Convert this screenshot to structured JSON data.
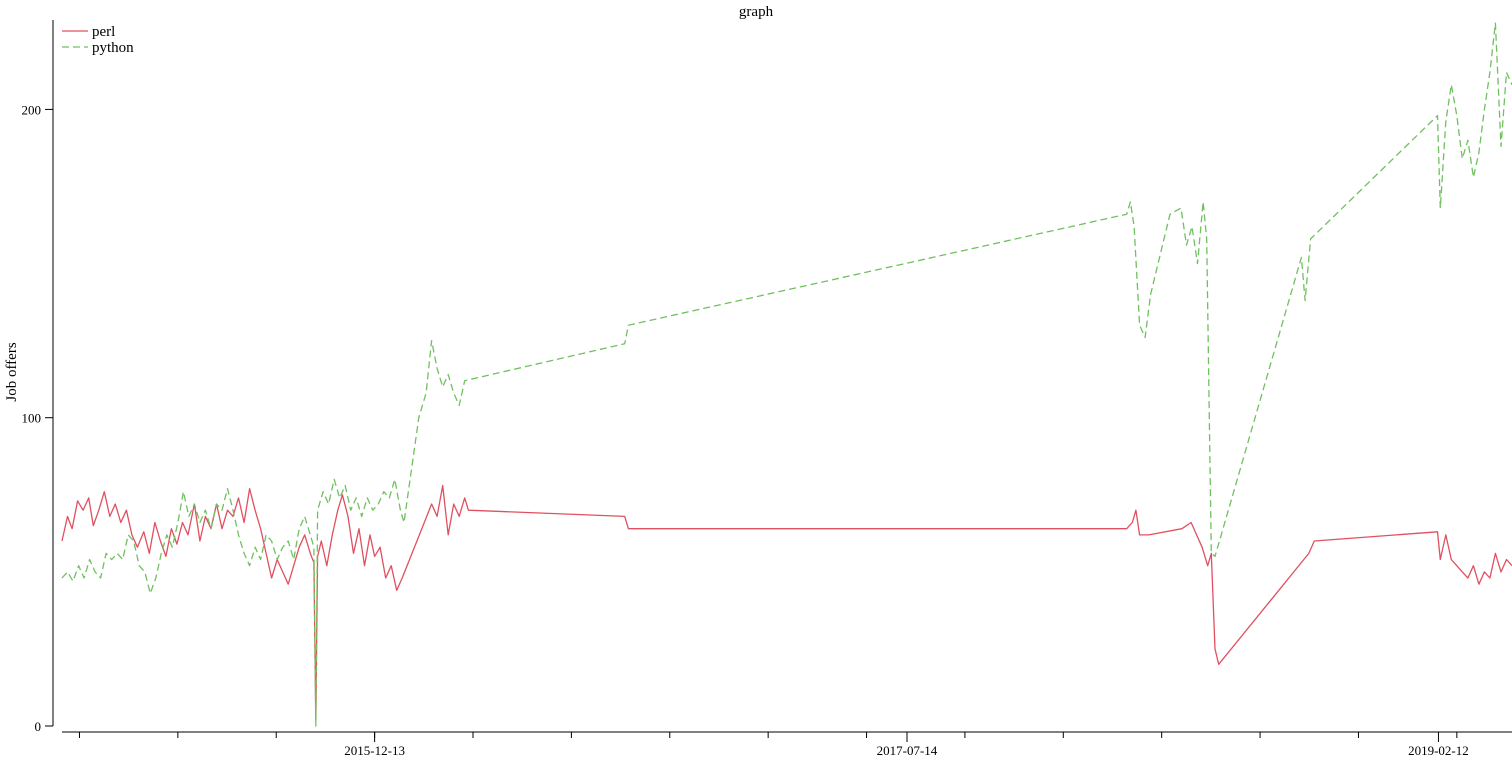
{
  "chart_data": {
    "type": "line",
    "title": "graph",
    "xlabel": "",
    "ylabel": "Job offers",
    "x_axis_type": "date",
    "xlim": [
      "2015-01-07",
      "2019-05-03"
    ],
    "ylim": [
      0,
      229
    ],
    "x_ticks": [
      "2015-12-13",
      "2017-07-14",
      "2019-02-12"
    ],
    "y_ticks": [
      0,
      100,
      200
    ],
    "grid": false,
    "legend_position": "top-left",
    "series": [
      {
        "name": "perl",
        "color": "#e05060",
        "dash": "solid",
        "points": [
          [
            "2015-01-07",
            60
          ],
          [
            "2015-01-13",
            68
          ],
          [
            "2015-01-18",
            64
          ],
          [
            "2015-01-24",
            73
          ],
          [
            "2015-01-30",
            70
          ],
          [
            "2015-02-05",
            74
          ],
          [
            "2015-02-10",
            65
          ],
          [
            "2015-02-16",
            70
          ],
          [
            "2015-02-22",
            76
          ],
          [
            "2015-02-28",
            68
          ],
          [
            "2015-03-06",
            72
          ],
          [
            "2015-03-12",
            66
          ],
          [
            "2015-03-18",
            70
          ],
          [
            "2015-03-24",
            62
          ],
          [
            "2015-03-30",
            58
          ],
          [
            "2015-04-06",
            63
          ],
          [
            "2015-04-12",
            56
          ],
          [
            "2015-04-18",
            66
          ],
          [
            "2015-04-24",
            60
          ],
          [
            "2015-04-30",
            55
          ],
          [
            "2015-05-06",
            64
          ],
          [
            "2015-05-12",
            59
          ],
          [
            "2015-05-18",
            66
          ],
          [
            "2015-05-24",
            62
          ],
          [
            "2015-05-31",
            72
          ],
          [
            "2015-06-06",
            60
          ],
          [
            "2015-06-12",
            68
          ],
          [
            "2015-06-18",
            64
          ],
          [
            "2015-06-24",
            72
          ],
          [
            "2015-06-30",
            64
          ],
          [
            "2015-07-06",
            70
          ],
          [
            "2015-07-12",
            68
          ],
          [
            "2015-07-18",
            74
          ],
          [
            "2015-07-24",
            66
          ],
          [
            "2015-07-30",
            77
          ],
          [
            "2015-08-05",
            70
          ],
          [
            "2015-08-11",
            64
          ],
          [
            "2015-08-17",
            56
          ],
          [
            "2015-08-23",
            48
          ],
          [
            "2015-08-29",
            54
          ],
          [
            "2015-09-04",
            50
          ],
          [
            "2015-09-10",
            46
          ],
          [
            "2015-09-16",
            52
          ],
          [
            "2015-09-22",
            58
          ],
          [
            "2015-09-28",
            62
          ],
          [
            "2015-10-04",
            56
          ],
          [
            "2015-10-08",
            53
          ],
          [
            "2015-10-10",
            2
          ],
          [
            "2015-10-12",
            55
          ],
          [
            "2015-10-16",
            60
          ],
          [
            "2015-10-22",
            52
          ],
          [
            "2015-10-28",
            62
          ],
          [
            "2015-11-03",
            70
          ],
          [
            "2015-11-08",
            75
          ],
          [
            "2015-11-14",
            68
          ],
          [
            "2015-11-20",
            56
          ],
          [
            "2015-11-26",
            64
          ],
          [
            "2015-12-02",
            52
          ],
          [
            "2015-12-08",
            62
          ],
          [
            "2015-12-13",
            55
          ],
          [
            "2015-12-19",
            58
          ],
          [
            "2015-12-25",
            48
          ],
          [
            "2015-12-31",
            52
          ],
          [
            "2016-01-06",
            44
          ],
          [
            "2016-01-12",
            48
          ],
          [
            "2016-02-05",
            66
          ],
          [
            "2016-02-13",
            72
          ],
          [
            "2016-02-19",
            68
          ],
          [
            "2016-02-25",
            78
          ],
          [
            "2016-03-02",
            62
          ],
          [
            "2016-03-08",
            72
          ],
          [
            "2016-03-14",
            68
          ],
          [
            "2016-03-20",
            74
          ],
          [
            "2016-03-24",
            70
          ],
          [
            "2016-09-10",
            68
          ],
          [
            "2016-09-14",
            64
          ],
          [
            "2018-03-10",
            64
          ],
          [
            "2018-03-16",
            66
          ],
          [
            "2018-03-20",
            70
          ],
          [
            "2018-03-24",
            62
          ],
          [
            "2018-04-03",
            62
          ],
          [
            "2018-05-09",
            64
          ],
          [
            "2018-05-19",
            66
          ],
          [
            "2018-05-25",
            62
          ],
          [
            "2018-05-31",
            58
          ],
          [
            "2018-06-06",
            52
          ],
          [
            "2018-06-10",
            56
          ],
          [
            "2018-06-14",
            25
          ],
          [
            "2018-06-18",
            20
          ],
          [
            "2018-09-24",
            56
          ],
          [
            "2018-09-30",
            60
          ],
          [
            "2019-02-11",
            63
          ],
          [
            "2019-02-14",
            54
          ],
          [
            "2019-02-20",
            62
          ],
          [
            "2019-02-26",
            54
          ],
          [
            "2019-03-04",
            52
          ],
          [
            "2019-03-10",
            50
          ],
          [
            "2019-03-16",
            48
          ],
          [
            "2019-03-22",
            52
          ],
          [
            "2019-03-28",
            46
          ],
          [
            "2019-04-03",
            50
          ],
          [
            "2019-04-09",
            48
          ],
          [
            "2019-04-15",
            56
          ],
          [
            "2019-04-21",
            50
          ],
          [
            "2019-04-27",
            54
          ],
          [
            "2019-05-03",
            52
          ]
        ]
      },
      {
        "name": "python",
        "color": "#70c060",
        "dash": "7,4",
        "points": [
          [
            "2015-01-07",
            48
          ],
          [
            "2015-01-13",
            50
          ],
          [
            "2015-01-19",
            47
          ],
          [
            "2015-01-25",
            52
          ],
          [
            "2015-01-31",
            48
          ],
          [
            "2015-02-06",
            54
          ],
          [
            "2015-02-12",
            50
          ],
          [
            "2015-02-18",
            48
          ],
          [
            "2015-02-24",
            56
          ],
          [
            "2015-03-02",
            54
          ],
          [
            "2015-03-08",
            56
          ],
          [
            "2015-03-14",
            54
          ],
          [
            "2015-03-20",
            62
          ],
          [
            "2015-03-26",
            60
          ],
          [
            "2015-04-01",
            52
          ],
          [
            "2015-04-07",
            50
          ],
          [
            "2015-04-13",
            43
          ],
          [
            "2015-04-19",
            48
          ],
          [
            "2015-04-25",
            56
          ],
          [
            "2015-05-01",
            62
          ],
          [
            "2015-05-07",
            58
          ],
          [
            "2015-05-13",
            66
          ],
          [
            "2015-05-19",
            76
          ],
          [
            "2015-05-25",
            68
          ],
          [
            "2015-05-31",
            72
          ],
          [
            "2015-06-06",
            66
          ],
          [
            "2015-06-12",
            70
          ],
          [
            "2015-06-18",
            64
          ],
          [
            "2015-06-24",
            72
          ],
          [
            "2015-06-30",
            70
          ],
          [
            "2015-07-06",
            77
          ],
          [
            "2015-07-12",
            70
          ],
          [
            "2015-07-18",
            62
          ],
          [
            "2015-07-24",
            56
          ],
          [
            "2015-07-30",
            52
          ],
          [
            "2015-08-05",
            58
          ],
          [
            "2015-08-11",
            54
          ],
          [
            "2015-08-17",
            62
          ],
          [
            "2015-08-23",
            60
          ],
          [
            "2015-08-29",
            54
          ],
          [
            "2015-09-04",
            58
          ],
          [
            "2015-09-10",
            60
          ],
          [
            "2015-09-16",
            54
          ],
          [
            "2015-09-22",
            64
          ],
          [
            "2015-09-28",
            68
          ],
          [
            "2015-10-04",
            62
          ],
          [
            "2015-10-08",
            58
          ],
          [
            "2015-10-10",
            0
          ],
          [
            "2015-10-12",
            70
          ],
          [
            "2015-10-18",
            76
          ],
          [
            "2015-10-24",
            72
          ],
          [
            "2015-10-30",
            80
          ],
          [
            "2015-11-05",
            74
          ],
          [
            "2015-11-11",
            78
          ],
          [
            "2015-11-17",
            70
          ],
          [
            "2015-11-23",
            74
          ],
          [
            "2015-11-29",
            68
          ],
          [
            "2015-12-05",
            74
          ],
          [
            "2015-12-11",
            70
          ],
          [
            "2015-12-17",
            72
          ],
          [
            "2015-12-23",
            76
          ],
          [
            "2015-12-29",
            74
          ],
          [
            "2016-01-04",
            80
          ],
          [
            "2016-01-10",
            70
          ],
          [
            "2016-01-14",
            66
          ],
          [
            "2016-01-30",
            100
          ],
          [
            "2016-02-07",
            108
          ],
          [
            "2016-02-13",
            125
          ],
          [
            "2016-02-19",
            116
          ],
          [
            "2016-02-25",
            110
          ],
          [
            "2016-03-02",
            114
          ],
          [
            "2016-03-08",
            108
          ],
          [
            "2016-03-14",
            104
          ],
          [
            "2016-03-20",
            112
          ],
          [
            "2016-09-10",
            124
          ],
          [
            "2016-09-14",
            130
          ],
          [
            "2018-03-10",
            166
          ],
          [
            "2018-03-14",
            170
          ],
          [
            "2018-03-18",
            162
          ],
          [
            "2018-03-24",
            130
          ],
          [
            "2018-03-30",
            126
          ],
          [
            "2018-04-05",
            140
          ],
          [
            "2018-04-26",
            166
          ],
          [
            "2018-05-08",
            168
          ],
          [
            "2018-05-14",
            156
          ],
          [
            "2018-05-20",
            162
          ],
          [
            "2018-05-26",
            150
          ],
          [
            "2018-06-01",
            170
          ],
          [
            "2018-06-05",
            158
          ],
          [
            "2018-06-10",
            56
          ],
          [
            "2018-06-14",
            55
          ],
          [
            "2018-09-16",
            152
          ],
          [
            "2018-09-20",
            138
          ],
          [
            "2018-09-26",
            158
          ],
          [
            "2019-02-11",
            198
          ],
          [
            "2019-02-14",
            168
          ],
          [
            "2019-02-20",
            196
          ],
          [
            "2019-02-26",
            208
          ],
          [
            "2019-03-04",
            198
          ],
          [
            "2019-03-10",
            184
          ],
          [
            "2019-03-16",
            190
          ],
          [
            "2019-03-22",
            178
          ],
          [
            "2019-03-28",
            186
          ],
          [
            "2019-04-03",
            200
          ],
          [
            "2019-04-09",
            212
          ],
          [
            "2019-04-15",
            228
          ],
          [
            "2019-04-21",
            188
          ],
          [
            "2019-04-27",
            212
          ],
          [
            "2019-05-03",
            208
          ]
        ]
      }
    ]
  }
}
